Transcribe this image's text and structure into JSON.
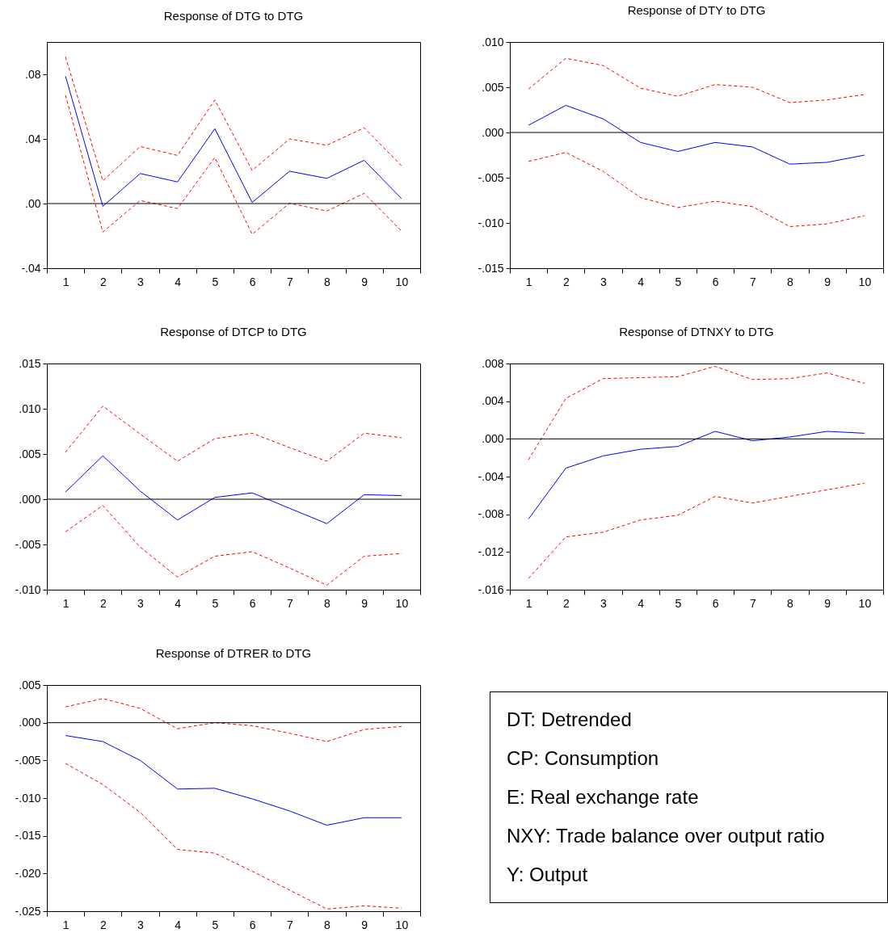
{
  "chart_data": [
    {
      "type": "line",
      "title": "Response of DTG to DTG",
      "categories": [
        "1",
        "2",
        "3",
        "4",
        "5",
        "6",
        "7",
        "8",
        "9",
        "10"
      ],
      "series": [
        {
          "color": "#0000ff",
          "line_style": "solid",
          "values": [
            0.0788,
            -0.0017,
            0.0186,
            0.0134,
            0.0463,
            0.0007,
            0.02,
            0.0156,
            0.0268,
            0.0031
          ]
        },
        {
          "color": "#ff0000",
          "line_style": "dashed",
          "values": [
            0.0908,
            0.0141,
            0.0353,
            0.0298,
            0.0641,
            0.0205,
            0.04,
            0.0361,
            0.0469,
            0.0234
          ]
        },
        {
          "color": "#ff0000",
          "line_style": "dashed",
          "values": [
            0.0671,
            -0.0176,
            0.0019,
            -0.0031,
            0.0285,
            -0.019,
            0.0002,
            -0.0046,
            0.0063,
            -0.0169
          ]
        }
      ],
      "ylim": [
        -0.04,
        0.1
      ],
      "yticks": [
        {
          "value": -0.04,
          "label": "-.04"
        },
        {
          "value": 0,
          "label": ".00"
        },
        {
          "value": 0.04,
          "label": ".04"
        },
        {
          "value": 0.08,
          "label": ".08"
        }
      ],
      "ref_lines": [
        {
          "axis": "y",
          "value": 0,
          "color": "#000000"
        }
      ]
    },
    {
      "type": "line",
      "title": "Response of DTY to DTG",
      "categories": [
        "1",
        "2",
        "3",
        "4",
        "5",
        "6",
        "7",
        "8",
        "9",
        "10"
      ],
      "series": [
        {
          "color": "#0000ff",
          "line_style": "solid",
          "values": [
            0.0008,
            0.003,
            0.0015,
            -0.0011,
            -0.0021,
            -0.0011,
            -0.0016,
            -0.0035,
            -0.0033,
            -0.0025
          ]
        },
        {
          "color": "#ff0000",
          "line_style": "dashed",
          "values": [
            0.0048,
            0.0082,
            0.0074,
            0.0049,
            0.004,
            0.0053,
            0.005,
            0.0033,
            0.0036,
            0.0042
          ]
        },
        {
          "color": "#ff0000",
          "line_style": "dashed",
          "values": [
            -0.0032,
            -0.0022,
            -0.0043,
            -0.0072,
            -0.0083,
            -0.0076,
            -0.0082,
            -0.0104,
            -0.0101,
            -0.0092
          ]
        }
      ],
      "ylim": [
        -0.015,
        0.01
      ],
      "yticks": [
        {
          "value": -0.015,
          "label": "-.015"
        },
        {
          "value": -0.01,
          "label": "-.010"
        },
        {
          "value": -0.005,
          "label": "-.005"
        },
        {
          "value": 0,
          "label": ".000"
        },
        {
          "value": 0.005,
          "label": ".005"
        },
        {
          "value": 0.01,
          "label": ".010"
        }
      ],
      "ref_lines": [
        {
          "axis": "y",
          "value": 0,
          "color": "#000000"
        }
      ]
    },
    {
      "type": "line",
      "title": "Response of DTCP to DTG",
      "categories": [
        "1",
        "2",
        "3",
        "4",
        "5",
        "6",
        "7",
        "8",
        "9",
        "10"
      ],
      "series": [
        {
          "color": "#0000ff",
          "line_style": "solid",
          "values": [
            0.0008,
            0.0048,
            0.0009,
            -0.0023,
            0.0002,
            0.0007,
            -0.001,
            -0.0027,
            0.0005,
            0.0004
          ]
        },
        {
          "color": "#ff0000",
          "line_style": "dashed",
          "values": [
            0.0052,
            0.0103,
            0.0072,
            0.0042,
            0.0067,
            0.0073,
            0.0057,
            0.0042,
            0.0073,
            0.0068
          ]
        },
        {
          "color": "#ff0000",
          "line_style": "dashed",
          "values": [
            -0.0036,
            -0.0007,
            -0.0053,
            -0.0086,
            -0.0063,
            -0.0058,
            -0.0076,
            -0.0095,
            -0.0063,
            -0.006
          ]
        }
      ],
      "ylim": [
        -0.01,
        0.015
      ],
      "yticks": [
        {
          "value": -0.01,
          "label": "-.010"
        },
        {
          "value": -0.005,
          "label": "-.005"
        },
        {
          "value": 0,
          "label": ".000"
        },
        {
          "value": 0.005,
          "label": ".005"
        },
        {
          "value": 0.01,
          "label": ".010"
        },
        {
          "value": 0.015,
          "label": ".015"
        }
      ],
      "ref_lines": [
        {
          "axis": "y",
          "value": 0,
          "color": "#000000"
        }
      ]
    },
    {
      "type": "line",
      "title": "Response of DTNXY to DTG",
      "categories": [
        "1",
        "2",
        "3",
        "4",
        "5",
        "6",
        "7",
        "8",
        "9",
        "10"
      ],
      "series": [
        {
          "color": "#0000ff",
          "line_style": "solid",
          "values": [
            -0.0085,
            -0.0031,
            -0.0018,
            -0.0011,
            -0.0008,
            0.0008,
            -0.0002,
            0.0002,
            0.0008,
            0.0006
          ]
        },
        {
          "color": "#ff0000",
          "line_style": "dashed",
          "values": [
            -0.0022,
            0.0043,
            0.0064,
            0.0065,
            0.0066,
            0.0077,
            0.0063,
            0.0064,
            0.007,
            0.0059
          ]
        },
        {
          "color": "#ff0000",
          "line_style": "dashed",
          "values": [
            -0.0148,
            -0.0104,
            -0.0099,
            -0.0086,
            -0.0081,
            -0.0061,
            -0.0068,
            -0.0061,
            -0.0054,
            -0.0047
          ]
        }
      ],
      "ylim": [
        -0.016,
        0.008
      ],
      "yticks": [
        {
          "value": -0.016,
          "label": "-.016"
        },
        {
          "value": -0.012,
          "label": "-.012"
        },
        {
          "value": -0.008,
          "label": "-.008"
        },
        {
          "value": -0.004,
          "label": "-.004"
        },
        {
          "value": 0,
          "label": ".000"
        },
        {
          "value": 0.004,
          "label": ".004"
        },
        {
          "value": 0.008,
          "label": ".008"
        }
      ],
      "ref_lines": [
        {
          "axis": "y",
          "value": 0,
          "color": "#000000"
        }
      ]
    },
    {
      "type": "line",
      "title": "Response of DTRER to DTG",
      "categories": [
        "1",
        "2",
        "3",
        "4",
        "5",
        "6",
        "7",
        "8",
        "9",
        "10"
      ],
      "series": [
        {
          "color": "#0000ff",
          "line_style": "solid",
          "values": [
            -0.0017,
            -0.0025,
            -0.005,
            -0.0088,
            -0.0087,
            -0.0101,
            -0.0117,
            -0.0136,
            -0.0126,
            -0.0126
          ]
        },
        {
          "color": "#ff0000",
          "line_style": "dashed",
          "values": [
            0.0021,
            0.0032,
            0.0019,
            -0.0008,
            0.0,
            -0.0004,
            -0.0014,
            -0.0025,
            -0.0009,
            -0.0005
          ]
        },
        {
          "color": "#ff0000",
          "line_style": "dashed",
          "values": [
            -0.0054,
            -0.0082,
            -0.0119,
            -0.0168,
            -0.0173,
            -0.0197,
            -0.0222,
            -0.0247,
            -0.0243,
            -0.0246
          ]
        }
      ],
      "ylim": [
        -0.025,
        0.005
      ],
      "yticks": [
        {
          "value": -0.025,
          "label": "-.025"
        },
        {
          "value": -0.02,
          "label": "-.020"
        },
        {
          "value": -0.015,
          "label": "-.015"
        },
        {
          "value": -0.01,
          "label": "-.010"
        },
        {
          "value": -0.005,
          "label": "-.005"
        },
        {
          "value": 0,
          "label": ".000"
        },
        {
          "value": 0.005,
          "label": ".005"
        }
      ],
      "ref_lines": [
        {
          "axis": "y",
          "value": 0,
          "color": "#000000"
        }
      ]
    },
    {
      "type": "other",
      "annotations": [
        "DT: Detrended",
        "CP: Consumption",
        "E: Real exchange rate",
        "NXY: Trade balance over output ratio",
        "Y: Output"
      ]
    }
  ]
}
